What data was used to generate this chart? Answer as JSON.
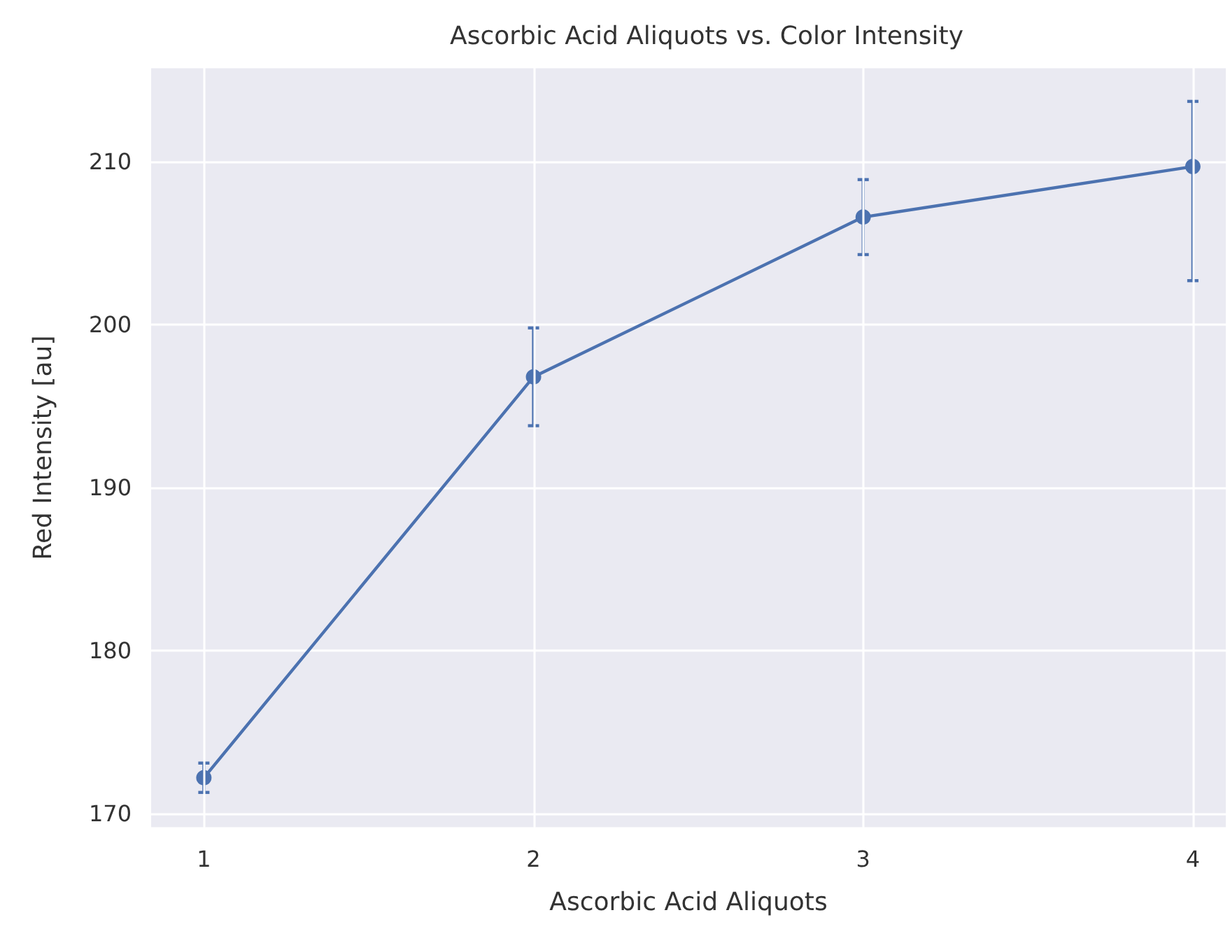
{
  "chart_data": {
    "type": "line",
    "title": "Ascorbic Acid Aliquots vs. Color Intensity",
    "xlabel": "Ascorbic Acid Aliquots",
    "ylabel": "Red Intensity [au]",
    "x": [
      1,
      2,
      3,
      4
    ],
    "series": [
      {
        "color": "#4c72b0",
        "values": [
          172.2,
          196.8,
          206.6,
          209.7
        ],
        "errors": [
          0.9,
          3.0,
          2.3,
          [
            202.7,
            213.7
          ]
        ]
      }
    ],
    "xlim": [
      0.84,
      4.1
    ],
    "xticks": [
      1,
      2,
      3,
      4
    ],
    "ylim": [
      169.1,
      215.8
    ],
    "yticks": [
      170,
      180,
      190,
      200,
      210
    ],
    "grid": true,
    "marker": "circle",
    "line_style": "solid"
  }
}
